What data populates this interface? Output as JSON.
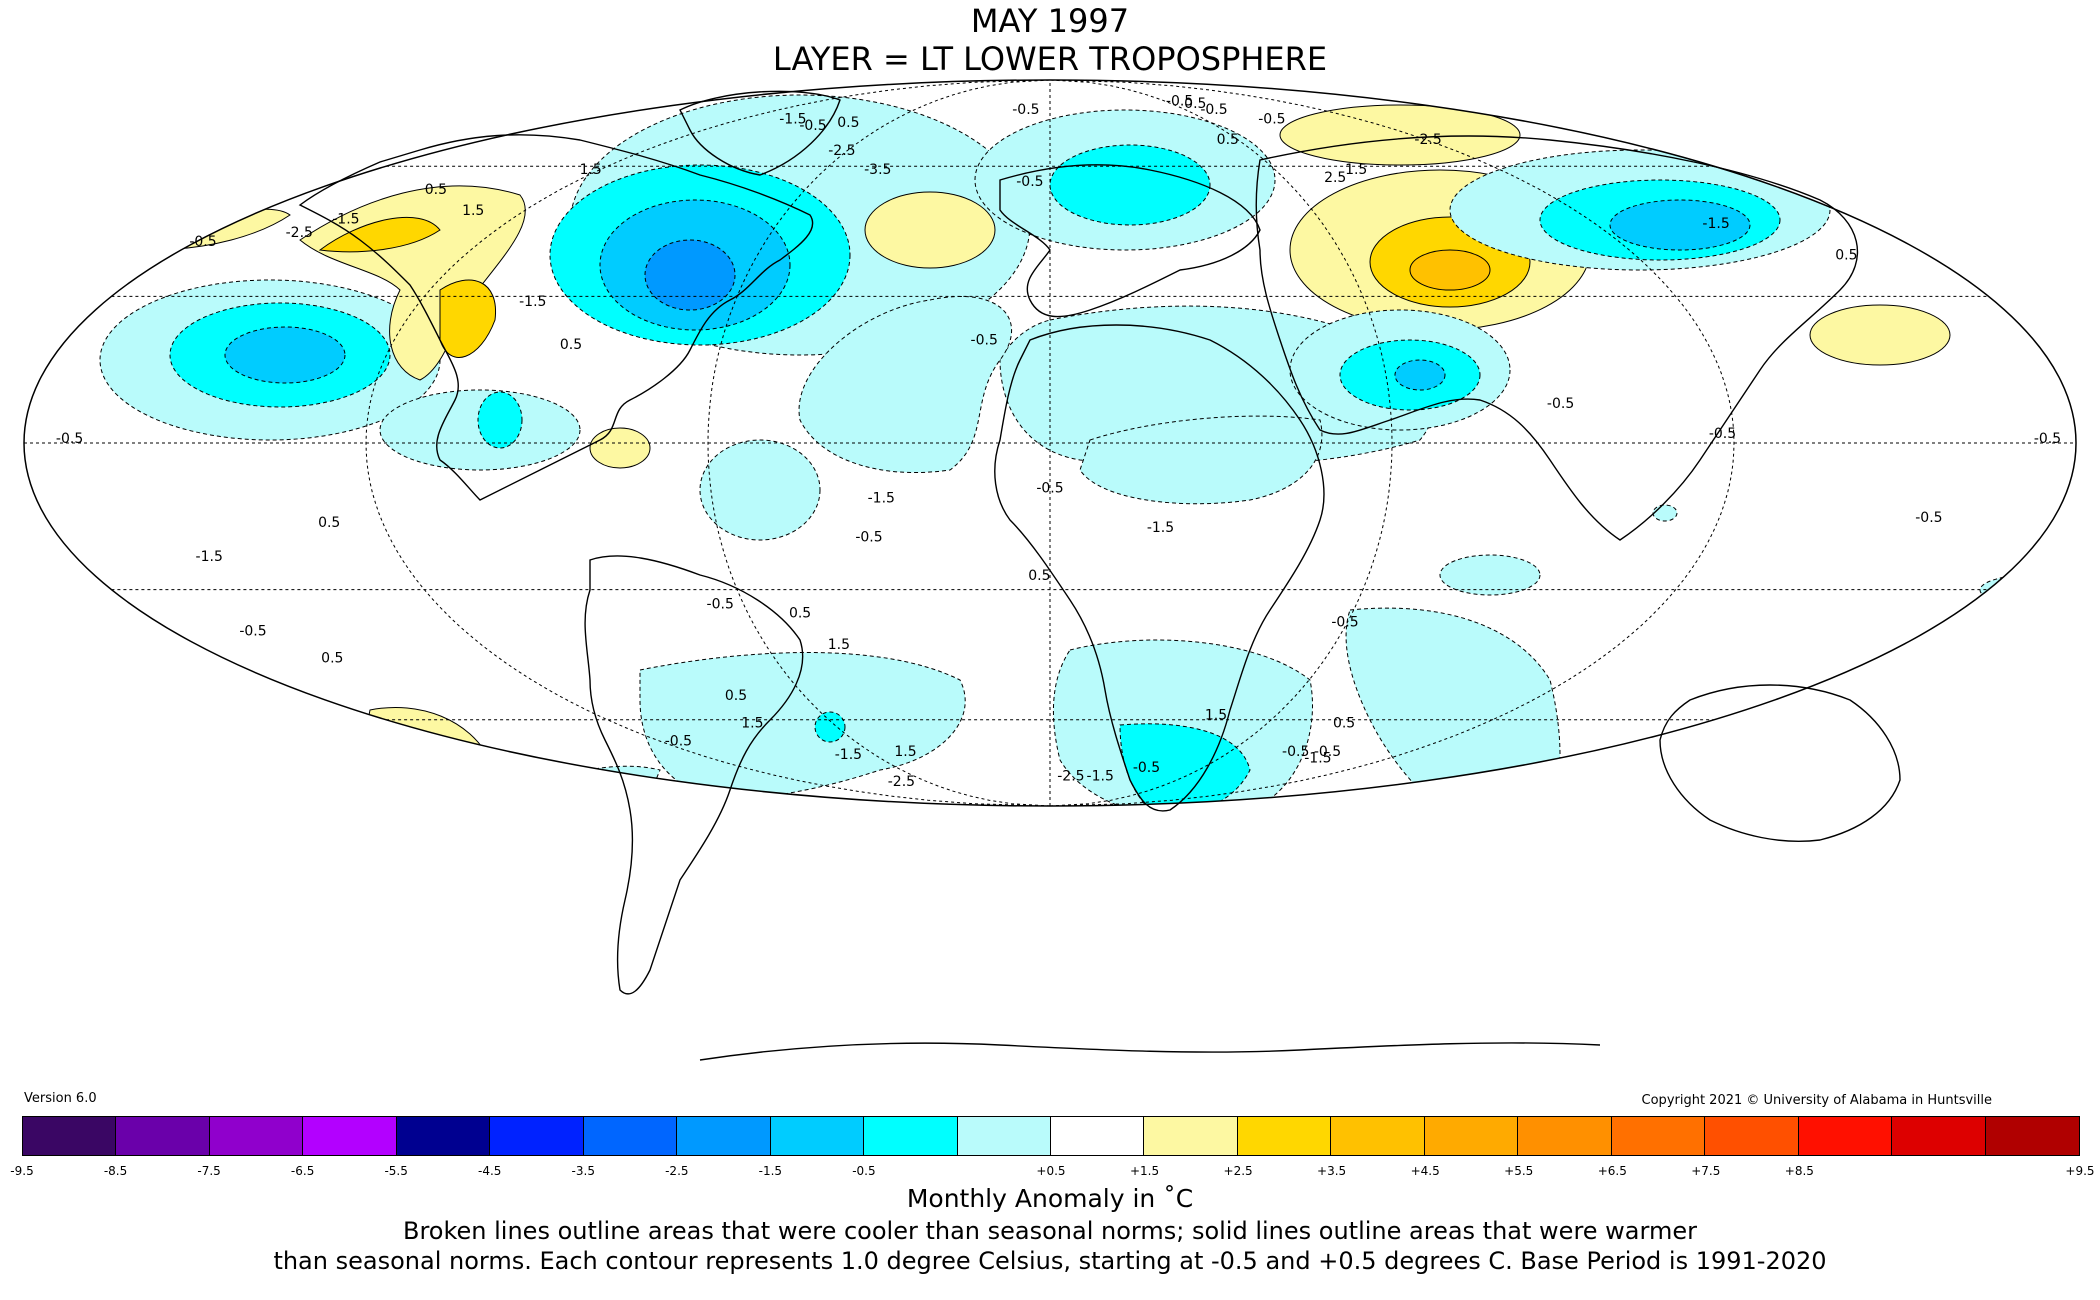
{
  "title": {
    "line1": "MAY 1997",
    "line2": "LAYER = LT LOWER TROPOSPHERE"
  },
  "version": "Version 6.0",
  "copyright": "Copyright 2021 © University of Alabama in Huntsville",
  "colorbar": {
    "colors": [
      "#3a0664",
      "#6a00aa",
      "#9000cc",
      "#b300ff",
      "#000090",
      "#0022ff",
      "#0066ff",
      "#0099ff",
      "#00ccff",
      "#00ffff",
      "#b9fbfb",
      "#ffffff",
      "#fdf8a2",
      "#ffd700",
      "#ffc100",
      "#ffaa00",
      "#ff9000",
      "#ff7000",
      "#ff5000",
      "#ff1000",
      "#dd0000",
      "#b00000"
    ],
    "ticks": [
      "-9.5",
      "-8.5",
      "-7.5",
      "-6.5",
      "-5.5",
      "-4.5",
      "-3.5",
      "-2.5",
      "-1.5",
      "-0.5",
      "+0.5",
      "+1.5",
      "+2.5",
      "+3.5",
      "+4.5",
      "+5.5",
      "+6.5",
      "+7.5",
      "+8.5",
      "+9.5"
    ]
  },
  "unit_label": "Monthly Anomaly in ˚C",
  "note_line1": "Broken lines outline areas that were cooler than seasonal norms; solid lines outline areas that were warmer",
  "note_line2": "than seasonal norms. Each contour represents 1.0 degree Celsius, starting at -0.5 and +0.5 degrees C. Base Period is 1991-2020",
  "map": {
    "projection": "Mollweide",
    "anomaly_colors": {
      "neg_0_5": "#b9fbfb",
      "neg_1_5": "#00ffff",
      "neg_2_5": "#00ccff",
      "neg_3_5": "#0099ff",
      "pos_0_5": "#fdf8a2",
      "pos_1_5": "#ffd700",
      "pos_2_5": "#ffc100"
    },
    "contour_labels": [
      {
        "text": "-1.5",
        "lon": -95,
        "lat": 72
      },
      {
        "text": "-0.5",
        "lon": -10,
        "lat": 75
      },
      {
        "text": "-0.5",
        "lon": 62,
        "lat": 78
      },
      {
        "text": "0.5",
        "lon": 66,
        "lat": 77
      },
      {
        "text": "-0.5",
        "lon": 68,
        "lat": 75
      },
      {
        "text": "-0.5",
        "lon": 82,
        "lat": 72
      },
      {
        "text": "0.5",
        "lon": -148,
        "lat": 53
      },
      {
        "text": "0.5",
        "lon": -72,
        "lat": 71
      },
      {
        "text": "-0.5",
        "lon": -82,
        "lat": 70
      },
      {
        "text": "-2.5",
        "lon": -60,
        "lat": 63
      },
      {
        "text": "-3.5",
        "lon": -45,
        "lat": 58
      },
      {
        "text": "-1.5",
        "lon": -155,
        "lat": 46
      },
      {
        "text": "-2.5",
        "lon": -160,
        "lat": 43
      },
      {
        "text": "-0.5",
        "lon": -177,
        "lat": 41
      },
      {
        "text": "1.5",
        "lon": -130,
        "lat": 48
      },
      {
        "text": "1.5",
        "lon": -120,
        "lat": 58
      },
      {
        "text": "-0.5",
        "lon": -5,
        "lat": 55
      },
      {
        "text": "0.5",
        "lon": 55,
        "lat": 66
      },
      {
        "text": "1.5",
        "lon": 80,
        "lat": 58
      },
      {
        "text": "2.5",
        "lon": 72,
        "lat": 56
      },
      {
        "text": "-2.5",
        "lon": 117,
        "lat": 66
      },
      {
        "text": "-1.5",
        "lon": 145,
        "lat": 45
      },
      {
        "text": "0.5",
        "lon": 162,
        "lat": 38
      },
      {
        "text": "-1.5",
        "lon": -98,
        "lat": 28
      },
      {
        "text": "0.5",
        "lon": -87,
        "lat": 19
      },
      {
        "text": "-0.5",
        "lon": -12,
        "lat": 20
      },
      {
        "text": "-0.5",
        "lon": 90,
        "lat": 7
      },
      {
        "text": "-0.5",
        "lon": -172,
        "lat": 0
      },
      {
        "text": "-0.5",
        "lon": 118,
        "lat": 1
      },
      {
        "text": "-0.5",
        "lon": 175,
        "lat": 0
      },
      {
        "text": "-0.5",
        "lon": 0,
        "lat": -10
      },
      {
        "text": "-1.5",
        "lon": 20,
        "lat": -18
      },
      {
        "text": "-1.5",
        "lon": -30,
        "lat": -12
      },
      {
        "text": "-0.5",
        "lon": -33,
        "lat": -20
      },
      {
        "text": "0.5",
        "lon": -130,
        "lat": -17
      },
      {
        "text": "-1.5",
        "lon": -156,
        "lat": -24
      },
      {
        "text": "-0.5",
        "lon": 158,
        "lat": -16
      },
      {
        "text": "-0.5",
        "lon": -65,
        "lat": -34
      },
      {
        "text": "0.5",
        "lon": -50,
        "lat": -36
      },
      {
        "text": "1.5",
        "lon": -45,
        "lat": -43
      },
      {
        "text": "0.5",
        "lon": -2,
        "lat": -28
      },
      {
        "text": "-0.5",
        "lon": 60,
        "lat": -38
      },
      {
        "text": "-0.5",
        "lon": -165,
        "lat": -40
      },
      {
        "text": "0.5",
        "lon": -158,
        "lat": -46
      },
      {
        "text": "0.5",
        "lon": -78,
        "lat": -55
      },
      {
        "text": "1.5",
        "lon": -84,
        "lat": -62
      },
      {
        "text": "1.5",
        "lon": 45,
        "lat": -60
      },
      {
        "text": "0.5",
        "lon": 83,
        "lat": -62
      },
      {
        "text": "-0.5",
        "lon": -118,
        "lat": -67
      },
      {
        "text": "-1.5",
        "lon": -72,
        "lat": -71
      },
      {
        "text": "1.5",
        "lon": -50,
        "lat": -70
      },
      {
        "text": "-2.5",
        "lon": 10,
        "lat": -78
      },
      {
        "text": "-1.5",
        "lon": 24,
        "lat": -78
      },
      {
        "text": "-0.5",
        "lon": 40,
        "lat": -75
      },
      {
        "text": "-0.5",
        "lon": 85,
        "lat": -70
      },
      {
        "text": "-0.5",
        "lon": 96,
        "lat": -70
      },
      {
        "text": "-1.5",
        "lon": 99,
        "lat": -72
      },
      {
        "text": "-2.5",
        "lon": -80,
        "lat": -80
      }
    ]
  }
}
